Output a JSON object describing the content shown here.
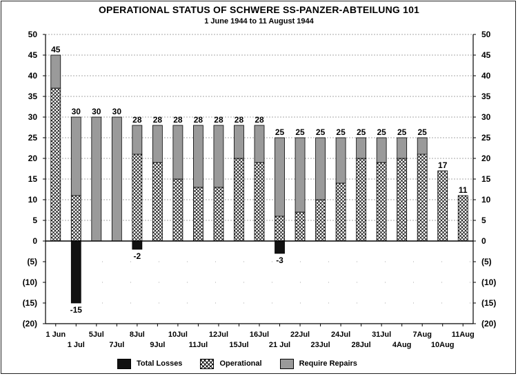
{
  "chart_data": {
    "type": "bar",
    "title": "OPERATIONAL STATUS OF SCHWERE SS-PANZER-ABTEILUNG 101",
    "subtitle": "1 June 1944 to 11 August 1944",
    "categories": [
      "1 Jun",
      "1 Jul",
      "5Jul",
      "7Jul",
      "8Jul",
      "9Jul",
      "10Jul",
      "11Jul",
      "12Jul",
      "15Jul",
      "16Jul",
      "21 Jul",
      "22Jul",
      "23Jul",
      "24Jul",
      "28Jul",
      "31Jul",
      "4Aug",
      "7Aug",
      "10Aug",
      "11Aug"
    ],
    "series": [
      {
        "name": "Total Losses",
        "values": [
          0,
          -15,
          0,
          0,
          -2,
          0,
          0,
          0,
          0,
          0,
          0,
          -3,
          0,
          0,
          0,
          0,
          0,
          0,
          0,
          0,
          0
        ]
      },
      {
        "name": "Operational",
        "values": [
          37,
          11,
          0,
          0,
          21,
          19,
          15,
          13,
          13,
          20,
          19,
          6,
          7,
          10,
          14,
          20,
          19,
          20,
          21,
          17,
          11
        ]
      },
      {
        "name": "Require Repairs",
        "values": [
          8,
          19,
          30,
          30,
          7,
          9,
          13,
          15,
          15,
          8,
          9,
          19,
          18,
          15,
          11,
          5,
          6,
          5,
          4,
          0,
          0
        ]
      }
    ],
    "totals": [
      45,
      30,
      30,
      30,
      28,
      28,
      28,
      28,
      28,
      28,
      28,
      25,
      25,
      25,
      25,
      25,
      25,
      25,
      25,
      17,
      11
    ],
    "loss_labels": [
      "",
      "-15",
      "",
      "",
      "-2",
      "",
      "",
      "",
      "",
      "",
      "",
      "-3",
      "",
      "",
      "",
      "",
      "",
      "",
      "",
      "",
      ""
    ],
    "y_ticks": [
      "50",
      "45",
      "40",
      "35",
      "30",
      "25",
      "20",
      "15",
      "10",
      "5",
      "0",
      "(5)",
      "(10)",
      "(15)",
      "(20)"
    ],
    "ylim": [
      -20,
      50
    ],
    "xlabel": "",
    "ylabel": "",
    "grid": true,
    "legend_position": "bottom",
    "colors": {
      "losses": "#111111",
      "operational_hatch": "#000000",
      "repairs": "#9a9a9a"
    }
  },
  "legend": {
    "items": [
      {
        "label": "Total Losses",
        "swatch": "solid-black"
      },
      {
        "label": "Operational",
        "swatch": "crosshatch"
      },
      {
        "label": "Require Repairs",
        "swatch": "solid-gray"
      }
    ]
  }
}
